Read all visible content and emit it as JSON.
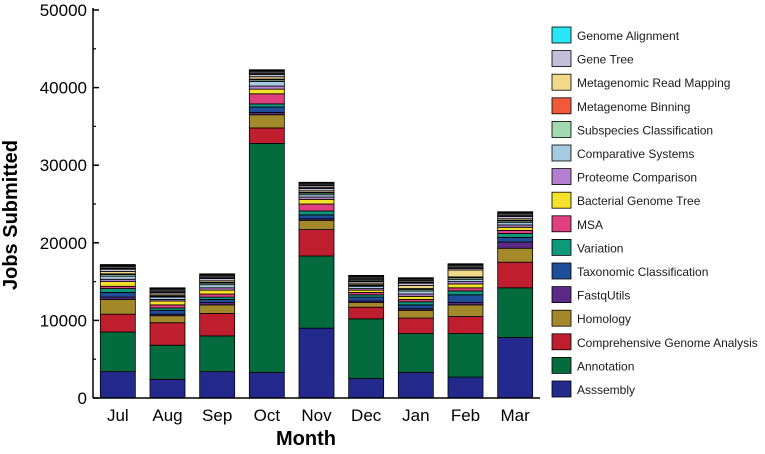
{
  "chart_data": {
    "type": "bar",
    "stacked": true,
    "title": "",
    "xlabel": "Month",
    "ylabel": "Jobs Submitted",
    "ylim": [
      0,
      50000
    ],
    "yticks": [
      0,
      10000,
      20000,
      30000,
      40000,
      50000
    ],
    "ytick_labels": [
      "0",
      "10000",
      "20000",
      "30000",
      "40000",
      "50000"
    ],
    "grid": false,
    "legend_position": "right",
    "categories": [
      "Jul",
      "Aug",
      "Sep",
      "Oct",
      "Nov",
      "Dec",
      "Jan",
      "Feb",
      "Mar"
    ],
    "series": [
      {
        "name": "Asssembly",
        "color": "#232a8c",
        "values": [
          3400,
          2400,
          3400,
          3300,
          9000,
          2500,
          3300,
          2700,
          7800
        ]
      },
      {
        "name": "Annotation",
        "color": "#036b3e",
        "values": [
          5100,
          4400,
          4600,
          29500,
          9300,
          7700,
          5000,
          5600,
          6400
        ]
      },
      {
        "name": "Comprehensive Genome Analysis",
        "color": "#bf1e2e",
        "values": [
          2300,
          2900,
          2900,
          2000,
          3400,
          1500,
          2000,
          2200,
          3300
        ]
      },
      {
        "name": "Homology",
        "color": "#a3892a",
        "values": [
          1900,
          900,
          1100,
          1700,
          1200,
          600,
          1000,
          1500,
          1800
        ]
      },
      {
        "name": "FastqUtils",
        "color": "#5b2a86",
        "values": [
          300,
          200,
          300,
          300,
          200,
          200,
          200,
          300,
          800
        ]
      },
      {
        "name": "Taxonomic Classification",
        "color": "#1f4e99",
        "values": [
          600,
          500,
          400,
          700,
          500,
          500,
          500,
          1000,
          600
        ]
      },
      {
        "name": "Variation",
        "color": "#0e9a7a",
        "values": [
          500,
          300,
          300,
          400,
          500,
          300,
          400,
          500,
          500
        ]
      },
      {
        "name": "MSA",
        "color": "#e0407f",
        "values": [
          300,
          400,
          400,
          1300,
          900,
          300,
          300,
          400,
          400
        ]
      },
      {
        "name": "Bacterial Genome Tree",
        "color": "#f3e12a",
        "values": [
          600,
          500,
          500,
          600,
          600,
          300,
          400,
          500,
          400
        ]
      },
      {
        "name": "Proteome Comparison",
        "color": "#b57fd1",
        "values": [
          300,
          200,
          300,
          400,
          300,
          200,
          300,
          300,
          300
        ]
      },
      {
        "name": "Comparative Systems",
        "color": "#a6cbe0",
        "values": [
          400,
          300,
          400,
          600,
          300,
          300,
          400,
          300,
          300
        ]
      },
      {
        "name": "Subspecies Classification",
        "color": "#a3d9b1",
        "values": [
          200,
          100,
          200,
          200,
          200,
          100,
          200,
          200,
          200
        ]
      },
      {
        "name": "Metagenome Binning",
        "color": "#f05a3a",
        "values": [
          100,
          100,
          100,
          100,
          100,
          100,
          100,
          100,
          100
        ]
      },
      {
        "name": "Metagenomic Read Mapping",
        "color": "#f2d98a",
        "values": [
          300,
          200,
          200,
          300,
          200,
          200,
          400,
          900,
          200
        ]
      },
      {
        "name": "Gene Tree",
        "color": "#c4bedb",
        "values": [
          300,
          200,
          300,
          300,
          300,
          200,
          300,
          200,
          300
        ]
      },
      {
        "name": "Genome Alignment",
        "color": "#29e7f7",
        "values": [
          100,
          100,
          100,
          100,
          100,
          100,
          100,
          100,
          100
        ]
      },
      {
        "values": [
          200,
          200,
          200,
          200,
          300,
          200,
          200,
          200,
          200
        ],
        "color": "#8a8a8a"
      },
      {
        "values": [
          200,
          200,
          200,
          200,
          300,
          400,
          300,
          200,
          200
        ],
        "color": "#2a2a2a"
      },
      {
        "values": [
          100,
          100,
          100,
          100,
          100,
          100,
          100,
          100,
          100
        ],
        "color": "#f5f5dc"
      }
    ],
    "legend_order": [
      15,
      14,
      13,
      12,
      11,
      10,
      9,
      8,
      7,
      6,
      5,
      4,
      3,
      2,
      1,
      0
    ]
  }
}
